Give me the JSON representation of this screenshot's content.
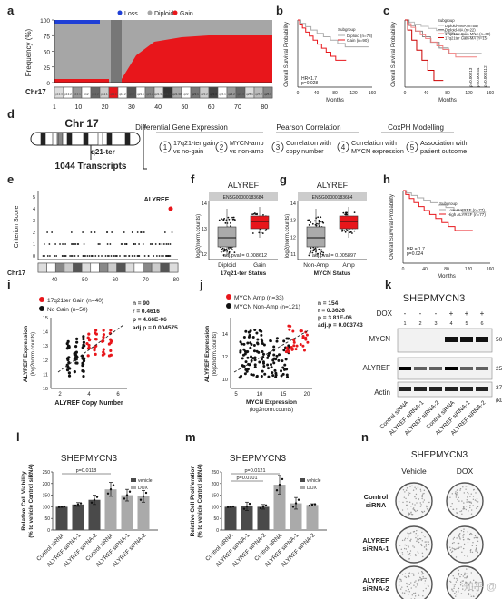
{
  "panels": {
    "a": {
      "letter": "a",
      "ylabel": "Frequency (%)",
      "legend": [
        "Loss",
        "Diploid",
        "Gain"
      ],
      "chr": "Chr17",
      "yticks": [
        "0",
        "25",
        "50",
        "75",
        "100"
      ],
      "xticks": [
        "1",
        "10",
        "20",
        "30",
        "40",
        "50",
        "60",
        "70",
        "80"
      ],
      "bands": [
        "p13.3",
        "p13.2",
        "p13.1",
        "p12",
        "p11.2",
        "p11.1",
        "q11.1",
        "q11.2",
        "q12",
        "q21.1",
        "q21.2",
        "q21.31",
        "q21.32",
        "q21.33",
        "q22",
        "q23.1",
        "q23.2",
        "q23.3",
        "q24.1",
        "q24.2",
        "q24.3",
        "q25.1",
        "q25.2",
        "q25.3"
      ],
      "colors": {
        "loss": "#1f3fd6",
        "diploid": "#a6a6a6",
        "gain": "#e8161b"
      }
    },
    "b": {
      "letter": "b",
      "ylabel": "Overall Survival Probability",
      "xlabel": "Months",
      "legend_title": "Subgroup",
      "legend": [
        "Diploid (n=78)",
        "Gain (n=90)"
      ],
      "stats": [
        "HR=1.7",
        "p=0.028"
      ],
      "xticks": [
        "0",
        "40",
        "80",
        "120",
        "160"
      ],
      "yticks": [
        "0.0",
        "0.2",
        "0.4",
        "0.6",
        "0.8",
        "1.0"
      ]
    },
    "c": {
      "letter": "c",
      "ylabel": "Overall Survival Probability",
      "xlabel": "Months",
      "legend_title": "Subgroup",
      "legend": [
        "Diploid-MNA (n=55)",
        "Diploid-MA (n=22)",
        "17q21ter Gain-MNA (n=60)",
        "17q21ter Gain-MA (n=15)"
      ],
      "stats": [
        "p=0.00213",
        "p=0.00644",
        "p=0.000112"
      ],
      "xticks": [
        "0",
        "40",
        "80",
        "120",
        "160"
      ]
    },
    "d": {
      "letter": "d",
      "chr_title": "Chr 17",
      "region": "q21-ter",
      "transcripts": "1044 Transcripts",
      "headers": [
        "Differential Gene Expression",
        "Pearson Correlation",
        "CoxPH Modelling"
      ],
      "items": [
        {
          "n": "1",
          "text": [
            "17q21-ter gain",
            "vs no-gain"
          ]
        },
        {
          "n": "2",
          "text": [
            "MYCN-amp",
            "vs non-amp"
          ]
        },
        {
          "n": "3",
          "text": [
            "Correlation with",
            "copy number"
          ]
        },
        {
          "n": "4",
          "text": [
            "Correlation with",
            "MYCN expression"
          ]
        },
        {
          "n": "5",
          "text": [
            "Association with",
            "patient outcome"
          ]
        }
      ]
    },
    "e": {
      "letter": "e",
      "ylabel": "Criterion Score",
      "gene": "ALYREF",
      "chr": "Chr17",
      "xticks": [
        "40",
        "50",
        "60",
        "70",
        "80"
      ],
      "yticks": [
        "0",
        "1",
        "2",
        "3",
        "4",
        "5"
      ]
    },
    "f": {
      "letter": "f",
      "title": "ALYREF",
      "subtitle": "ENSG00000183684",
      "ylabel": "log2(norm.counts)",
      "xlabel": "17q21-ter Status",
      "groups": [
        "Diploid",
        "Gain"
      ],
      "stat": "adj.pval = 0.008612",
      "yticks": [
        "12",
        "13",
        "14"
      ]
    },
    "g": {
      "letter": "g",
      "title": "ALYREF",
      "subtitle": "ENSG00000183684",
      "ylabel": "log2(norm.counts)",
      "xlabel": "MYCN Status",
      "groups": [
        "Non-Amp",
        "Amp"
      ],
      "stat": "adj.pval = 0.005897",
      "yticks": [
        "11",
        "12",
        "13",
        "14"
      ]
    },
    "h": {
      "letter": "h",
      "ylabel": "Overall Survival Probability",
      "xlabel": "Months",
      "legend_title": "Subgroup",
      "legend": [
        "Low ALYREF (n=77)",
        "High ALYREF (n=77)"
      ],
      "stats": [
        "HR = 1.7",
        "p=0.024"
      ],
      "xticks": [
        "0",
        "40",
        "80",
        "120",
        "160"
      ]
    },
    "i": {
      "letter": "i",
      "legend": [
        "17q21ter Gain (n=40)",
        "No Gain (n=50)"
      ],
      "ylabel": [
        "ALYREF Expression",
        "(log2norm.counts)"
      ],
      "xlabel": "ALYREF Copy Number",
      "stats": [
        "n = 90",
        "r = 0.4616",
        "p = 4.66E-06",
        "adj.p = 0.004575"
      ],
      "xticks": [
        "2",
        "4",
        "6"
      ],
      "yticks": [
        "10",
        "11",
        "12",
        "13",
        "14",
        "15"
      ]
    },
    "j": {
      "letter": "j",
      "legend": [
        "MYCN Amp (n=33)",
        "MYCN Non-Amp (n=121)"
      ],
      "ylabel": [
        "ALYREF Expression",
        "(log2norm.counts)"
      ],
      "xlabel": [
        "MYCN Expression",
        "(log2norm.counts)"
      ],
      "stats": [
        "n = 154",
        "r = 0.3626",
        "p = 3.81E-06",
        "adj.p = 0.003743"
      ],
      "xticks": [
        "5",
        "10",
        "15",
        "20"
      ],
      "yticks": [
        "10",
        "12",
        "14"
      ]
    },
    "k": {
      "letter": "k",
      "title": "SHEPMYCN3",
      "dox": "DOX",
      "signs": [
        "-",
        "-",
        "-",
        "+",
        "+",
        "+"
      ],
      "lanes": [
        "1",
        "2",
        "3",
        "4",
        "5",
        "6"
      ],
      "rows": [
        "MYCN",
        "ALYREF",
        "Actin"
      ],
      "mw": [
        "50",
        "25",
        "37"
      ],
      "kda": "(kDa)",
      "xlabels": [
        "Control siRNA",
        "ALYREF siRNA-1",
        "ALYREF siRNA-2",
        "Control siRNA",
        "ALYREF siRNA-1",
        "ALYREF siRNA-2"
      ]
    },
    "l": {
      "letter": "l",
      "title": "SHEPMYCN3",
      "ylabel": [
        "Relative Cell Viability",
        "(% to vehicle Control siRNA)"
      ],
      "legend": [
        "vehicle",
        "DOX"
      ],
      "stat": "p=0.0118",
      "yticks": [
        "0",
        "50",
        "100",
        "150",
        "200",
        "250"
      ],
      "xlabels": [
        "Control siRNA",
        "ALYREF siRNA-1",
        "ALYREF siRNA-2",
        "Control siRNA",
        "ALYREF siRNA-1",
        "ALYREF siRNA-2"
      ]
    },
    "m": {
      "letter": "m",
      "title": "SHEPMYCN3",
      "ylabel": [
        "Relative Cell Proliferation",
        "(% to vehicle Control siRNA)"
      ],
      "legend": [
        "vehicle",
        "DOX"
      ],
      "stats": [
        "p=0.0121",
        "p=0.0101"
      ],
      "yticks": [
        "0",
        "50",
        "100",
        "150",
        "200",
        "250"
      ],
      "xlabels": [
        "Control siRNA",
        "ALYREF siRNA-1",
        "ALYREF siRNA-2",
        "Control siRNA",
        "ALYREF siRNA-1",
        "ALYREF siRNA-2"
      ]
    },
    "n": {
      "letter": "n",
      "title": "SHEPMYCN3",
      "cols": [
        "Vehicle",
        "DOX"
      ],
      "rows": [
        [
          "Control",
          "siRNA"
        ],
        [
          "ALYREF",
          "siRNA-1"
        ],
        [
          "ALYREF",
          "siRNA-2"
        ]
      ]
    }
  },
  "chart_data": [
    {
      "type": "area",
      "panel": "a",
      "x_range": [
        1,
        83
      ],
      "ylim": [
        0,
        100
      ],
      "series": [
        {
          "name": "Gain",
          "values_by_region": {
            "1-25": 5,
            "25-30": 0,
            "30-45": "rising 10 to 60",
            "45-83": 65
          }
        },
        {
          "name": "Loss",
          "values_by_region": {
            "1-20": 2,
            "20-83": 0
          }
        }
      ]
    },
    {
      "type": "bar",
      "panel": "l",
      "categories": [
        "Control siRNA",
        "ALYREF siRNA-1",
        "ALYREF siRNA-2",
        "Control siRNA",
        "ALYREF siRNA-1",
        "ALYREF siRNA-2"
      ],
      "series": [
        {
          "name": "vehicle",
          "values": [
            100,
            110,
            130,
            null,
            null,
            null
          ]
        },
        {
          "name": "DOX",
          "values": [
            null,
            null,
            null,
            175,
            150,
            145
          ]
        }
      ],
      "errors": [
        2,
        8,
        20,
        30,
        25,
        25
      ],
      "ylim": [
        0,
        250
      ]
    },
    {
      "type": "bar",
      "panel": "m",
      "categories": [
        "Control siRNA",
        "ALYREF siRNA-1",
        "ALYREF siRNA-2",
        "Control siRNA",
        "ALYREF siRNA-1",
        "ALYREF siRNA-2"
      ],
      "series": [
        {
          "name": "vehicle",
          "values": [
            100,
            102,
            100,
            null,
            null,
            null
          ]
        },
        {
          "name": "DOX",
          "values": [
            null,
            null,
            null,
            195,
            115,
            108
          ]
        }
      ],
      "errors": [
        2,
        18,
        10,
        40,
        25,
        5
      ],
      "ylim": [
        0,
        250
      ]
    }
  ]
}
